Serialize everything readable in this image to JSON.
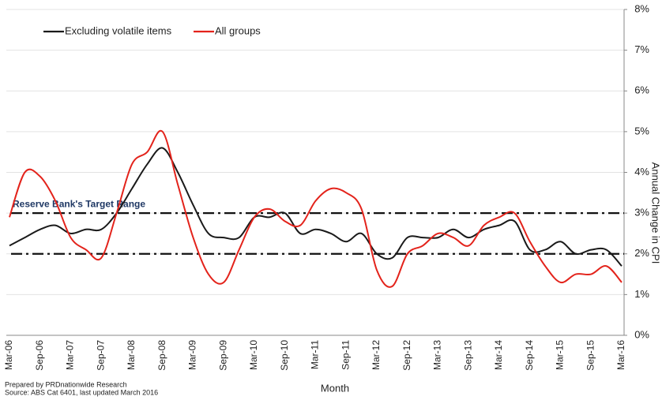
{
  "chart_data": {
    "type": "line",
    "x_label": "Month",
    "y_label": "Annual Change in CPI",
    "annotation": "Reserve Bank's Target Range",
    "target_range": [
      2,
      3
    ],
    "footnotes": [
      "Prepared by PRDnationwide Research",
      "Source: ABS Cat 6401, last updated March 2016"
    ],
    "categories": [
      "Mar-06",
      null,
      "Sep-06",
      null,
      "Mar-07",
      null,
      "Sep-07",
      null,
      "Mar-08",
      null,
      "Sep-08",
      null,
      "Mar-09",
      null,
      "Sep-09",
      null,
      "Mar-10",
      null,
      "Sep-10",
      null,
      "Mar-11",
      null,
      "Sep-11",
      null,
      "Mar-12",
      null,
      "Sep-12",
      null,
      "Mar-13",
      null,
      "Sep-13",
      null,
      "Mar-14",
      null,
      "Sep-14",
      null,
      "Mar-15",
      null,
      "Sep-15",
      null,
      "Mar-16"
    ],
    "series": [
      {
        "name": "Excluding volatile items",
        "color": "#1a1a1a",
        "values": [
          2.2,
          2.4,
          2.6,
          2.7,
          2.5,
          2.6,
          2.6,
          3.0,
          3.6,
          4.2,
          4.6,
          4.0,
          3.2,
          2.5,
          2.4,
          2.4,
          2.9,
          2.9,
          3.0,
          2.5,
          2.6,
          2.5,
          2.3,
          2.5,
          2.0,
          1.9,
          2.4,
          2.4,
          2.4,
          2.6,
          2.4,
          2.6,
          2.7,
          2.8,
          2.1,
          2.1,
          2.3,
          2.0,
          2.1,
          2.1,
          1.7
        ]
      },
      {
        "name": "All groups",
        "color": "#e3231b",
        "values": [
          2.9,
          4.0,
          3.9,
          3.3,
          2.4,
          2.1,
          1.9,
          3.0,
          4.2,
          4.5,
          5.0,
          3.7,
          2.4,
          1.5,
          1.3,
          2.1,
          2.9,
          3.1,
          2.8,
          2.7,
          3.3,
          3.6,
          3.5,
          3.1,
          1.6,
          1.2,
          2.0,
          2.2,
          2.5,
          2.4,
          2.2,
          2.7,
          2.9,
          3.0,
          2.3,
          1.7,
          1.3,
          1.5,
          1.5,
          1.7,
          1.3
        ]
      }
    ],
    "ylim": [
      0,
      8
    ],
    "yticks": [
      {
        "value": 0,
        "label": "0%"
      },
      {
        "value": 1,
        "label": "1%"
      },
      {
        "value": 2,
        "label": "2%"
      },
      {
        "value": 3,
        "label": "3%"
      },
      {
        "value": 4,
        "label": "4%"
      },
      {
        "value": 5,
        "label": "5%"
      },
      {
        "value": 6,
        "label": "6%"
      },
      {
        "value": 7,
        "label": "7%"
      },
      {
        "value": 8,
        "label": "8%"
      }
    ],
    "grid": true,
    "legend": "top-left"
  }
}
